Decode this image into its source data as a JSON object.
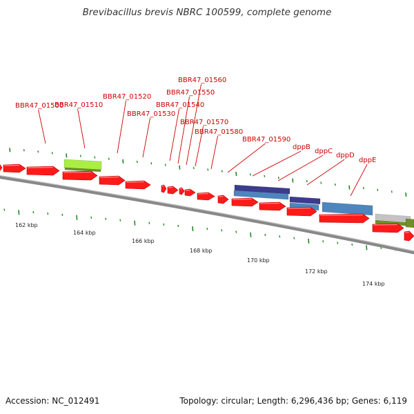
{
  "title": "Brevibacillus brevis NBRC 100599, complete genome",
  "footer": {
    "accession": "Accession: NC_012491",
    "summary": "Topology: circular; Length: 6,296,436 bp; Genes: 6,119"
  },
  "colors": {
    "cds": "#ff1a1a",
    "backbone": "#888888",
    "tick": "#228822",
    "label": "#cc0000",
    "feature_green": "#aaee44",
    "feature_purple": "#3c3c8e",
    "feature_blue": "#4d86bd",
    "feature_gray": "#c4c4c4",
    "feature_olive": "#6f8f2a"
  },
  "scale_labels": [
    "162 kbp",
    "164 kbp",
    "166 kbp",
    "168 kbp",
    "170 kbp",
    "172 kbp",
    "174 kbp"
  ],
  "gene_labels": [
    "BBR47_01500",
    "BBR47_01510",
    "BBR47_01520",
    "BBR47_01530",
    "BBR47_01540",
    "BBR47_01550",
    "BBR47_01560",
    "BBR47_01570",
    "BBR47_01580",
    "BBR47_01590",
    "dppB",
    "dppC",
    "dppD",
    "dppE"
  ]
}
